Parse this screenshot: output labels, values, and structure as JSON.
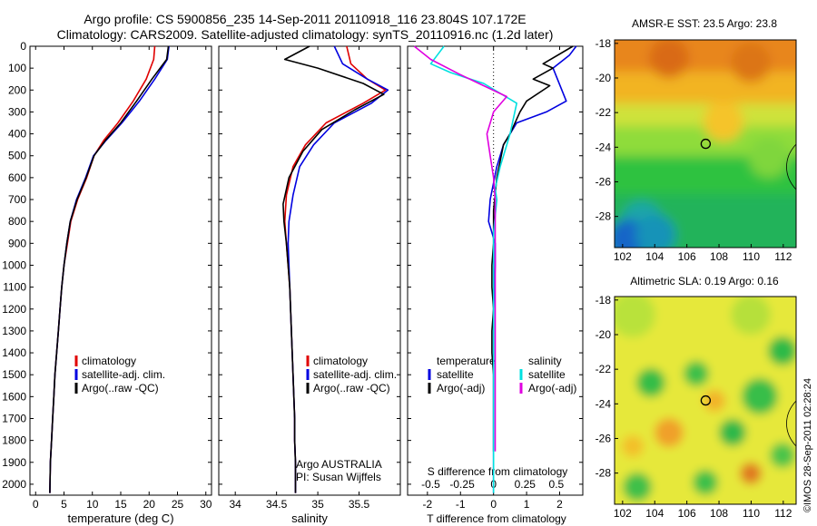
{
  "header": {
    "line1": "Argo profile: CS 5900856_235 14-Sep-2011 20110918_116 23.804S 107.172E",
    "line2": "Climatology: CARS2009. Satellite-adjusted climatology: synTS_20110916.nc (1.2d later)"
  },
  "colors": {
    "climatology": "#e00000",
    "satellite": "#0000e0",
    "argo": "#000000",
    "sat_salinity": "#00e0e0",
    "argo_salinity": "#e000e0"
  },
  "credit": "©IMOS 28-Sep-2011 02:28:24",
  "chart_data": [
    {
      "id": "temperature",
      "type": "line",
      "xlabel": "temperature (deg C)",
      "ylabel": "",
      "xlim": [
        -1,
        31
      ],
      "ylim": [
        0,
        2050
      ],
      "xticks": [
        0,
        5,
        10,
        15,
        20,
        25,
        30
      ],
      "yticks": [
        0,
        100,
        200,
        300,
        400,
        500,
        600,
        700,
        800,
        900,
        1000,
        1100,
        1200,
        1300,
        1400,
        1500,
        1600,
        1700,
        1800,
        1900,
        2000
      ],
      "y_reversed": true,
      "legend": [
        "climatology",
        "satellite-adj. clim.",
        "Argo(..raw -QC)"
      ],
      "series": [
        {
          "name": "climatology",
          "color": "#e00000",
          "x": [
            21.0,
            20.8,
            19.5,
            17.2,
            14.5,
            12.0,
            10.3,
            9.0,
            7.4,
            6.2,
            5.6,
            5.0,
            4.6,
            4.3,
            4.0,
            3.7,
            3.4,
            3.2,
            3.0,
            2.8,
            2.6,
            2.5
          ],
          "y": [
            0,
            60,
            150,
            250,
            350,
            430,
            500,
            600,
            700,
            800,
            900,
            1000,
            1100,
            1200,
            1300,
            1400,
            1500,
            1600,
            1700,
            1800,
            1900,
            2040
          ]
        },
        {
          "name": "satellite-adj. clim.",
          "color": "#0000e0",
          "x": [
            23.5,
            23.2,
            21.0,
            18.3,
            15.2,
            12.4,
            10.2,
            8.8,
            7.2,
            6.1,
            5.5,
            5.0,
            4.6,
            4.3,
            4.0,
            3.7,
            3.4,
            3.2,
            3.0,
            2.8,
            2.6,
            2.5
          ],
          "y": [
            0,
            60,
            150,
            250,
            350,
            430,
            500,
            600,
            700,
            800,
            900,
            1000,
            1100,
            1200,
            1300,
            1400,
            1500,
            1600,
            1700,
            1800,
            1900,
            2040
          ]
        },
        {
          "name": "Argo(..raw -QC)",
          "color": "#000000",
          "x": [
            23.4,
            23.1,
            20.5,
            17.8,
            15.0,
            12.3,
            10.3,
            8.9,
            7.3,
            6.1,
            5.5,
            5.0,
            4.6,
            4.3,
            4.0,
            3.7,
            3.4,
            3.2,
            3.0,
            2.8,
            2.6,
            2.5
          ],
          "y": [
            0,
            60,
            150,
            250,
            350,
            430,
            500,
            600,
            700,
            800,
            900,
            1000,
            1100,
            1200,
            1300,
            1400,
            1500,
            1600,
            1700,
            1800,
            1900,
            2040
          ]
        }
      ]
    },
    {
      "id": "salinity",
      "type": "line",
      "xlabel": "salinity",
      "ylabel": "",
      "xlim": [
        33.8,
        36.0
      ],
      "ylim": [
        0,
        2050
      ],
      "xticks": [
        34,
        34.5,
        35,
        35.5
      ],
      "y_reversed": true,
      "legend": [
        "climatology",
        "satellite-adj. clim.",
        "Argo(..raw -QC)"
      ],
      "annotation": [
        "Argo AUSTRALIA",
        "PI: Susan Wijffels"
      ],
      "series": [
        {
          "name": "climatology",
          "color": "#e00000",
          "x": [
            35.35,
            35.4,
            35.6,
            35.82,
            35.55,
            35.1,
            34.85,
            34.7,
            34.62,
            34.6,
            34.62,
            34.64,
            34.66,
            34.67,
            34.68,
            34.69,
            34.7,
            34.71,
            34.72,
            34.72,
            34.73,
            34.73
          ],
          "y": [
            0,
            80,
            150,
            200,
            260,
            350,
            450,
            550,
            680,
            800,
            900,
            1000,
            1100,
            1200,
            1300,
            1400,
            1500,
            1600,
            1700,
            1800,
            1900,
            2040
          ]
        },
        {
          "name": "satellite-adj. clim.",
          "color": "#0000e0",
          "x": [
            35.2,
            35.3,
            35.6,
            35.85,
            35.65,
            35.2,
            34.95,
            34.78,
            34.7,
            34.65,
            34.64,
            34.65,
            34.66,
            34.67,
            34.68,
            34.69,
            34.7,
            34.71,
            34.72,
            34.72,
            34.73,
            34.73
          ],
          "y": [
            0,
            80,
            150,
            200,
            260,
            350,
            450,
            550,
            680,
            800,
            900,
            1000,
            1100,
            1200,
            1300,
            1400,
            1500,
            1600,
            1700,
            1800,
            1900,
            2040
          ]
        },
        {
          "name": "Argo(..raw -QC)",
          "color": "#000000",
          "x": [
            34.9,
            34.6,
            35.0,
            35.55,
            35.8,
            35.45,
            35.05,
            34.82,
            34.65,
            34.58,
            34.59,
            34.62,
            34.64,
            34.66,
            34.67,
            34.68,
            34.69,
            34.7,
            34.71,
            34.72,
            34.72,
            34.73,
            34.73
          ],
          "y": [
            0,
            60,
            100,
            170,
            220,
            290,
            380,
            480,
            600,
            720,
            800,
            900,
            1000,
            1100,
            1200,
            1300,
            1400,
            1500,
            1600,
            1700,
            1800,
            1900,
            2040
          ]
        }
      ]
    },
    {
      "id": "differences",
      "type": "line",
      "xlabel": "T difference from climatology",
      "xlabel_top": "S difference from climatology",
      "xlim": [
        -2.6,
        2.7
      ],
      "ylim": [
        0,
        2050
      ],
      "xticks": [
        -2,
        -1,
        0,
        1,
        2
      ],
      "top_ticks": [
        {
          "label": "-0.5",
          "x": -1.9
        },
        {
          "label": "-0.25",
          "x": -0.95
        },
        {
          "label": "0",
          "x": 0
        },
        {
          "label": "0.25",
          "x": 0.95
        },
        {
          "label": "0.5",
          "x": 1.9
        }
      ],
      "y_reversed": true,
      "legend": {
        "temperature": "temperature",
        "salinity": "salinity",
        "t_sat": "satellite",
        "t_argo": "Argo(-adj)",
        "s_sat": "satellite",
        "s_argo": "Argo(-adj)"
      },
      "series": [
        {
          "name": "temperature satellite",
          "color": "#0000e0",
          "x": [
            2.5,
            2.3,
            1.8,
            2.2,
            1.6,
            0.7,
            0.3,
            0.1,
            -0.1,
            -0.15,
            0.05,
            0.05,
            0.03,
            0.0,
            0.0,
            0.0,
            0.0,
            0.0,
            0.0,
            0.0,
            0.0
          ],
          "y": [
            0,
            40,
            100,
            250,
            300,
            350,
            450,
            550,
            700,
            800,
            900,
            1000,
            1100,
            1200,
            1300,
            1400,
            1500,
            1600,
            1700,
            1800,
            2040
          ]
        },
        {
          "name": "temperature Argo(-adj)",
          "color": "#000000",
          "x": [
            2.4,
            1.5,
            1.8,
            1.2,
            1.7,
            1.0,
            0.8,
            0.5,
            0.3,
            0.1,
            0.0,
            0.0,
            -0.05,
            -0.05,
            0.0,
            -0.05,
            -0.05,
            0.0,
            0.0,
            0.0,
            0.0
          ],
          "y": [
            0,
            80,
            100,
            150,
            180,
            250,
            300,
            400,
            450,
            600,
            750,
            900,
            1000,
            1100,
            1200,
            1300,
            1400,
            1500,
            1600,
            1700,
            1850
          ]
        },
        {
          "name": "salinity satellite",
          "color": "#00e0e0",
          "x": [
            -1.5,
            -1.7,
            -1.9,
            -1.3,
            -0.3,
            0.7,
            0.5,
            0.2,
            0.05,
            0.1,
            0.0,
            0.0,
            0.0,
            0.0,
            0.0,
            0.0,
            0.0,
            0.0,
            0.0,
            0.0,
            0.0
          ],
          "y": [
            0,
            40,
            80,
            120,
            170,
            260,
            400,
            550,
            650,
            700,
            850,
            1000,
            1100,
            1200,
            1300,
            1400,
            1500,
            1600,
            1700,
            1800,
            2040
          ]
        },
        {
          "name": "salinity Argo(-adj)",
          "color": "#e000e0",
          "x": [
            -2.4,
            -1.9,
            -1.0,
            -0.3,
            0.4,
            0.0,
            -0.2,
            -0.1,
            0.0,
            0.05,
            0.05,
            0.05,
            0.05,
            0.05,
            0.05,
            0.05,
            0.05,
            0.05,
            0.05
          ],
          "y": [
            0,
            60,
            130,
            180,
            230,
            300,
            400,
            500,
            600,
            700,
            800,
            900,
            1000,
            1100,
            1200,
            1300,
            1400,
            1500,
            1850
          ]
        }
      ]
    },
    {
      "id": "sst-map",
      "type": "heatmap",
      "title": "AMSR-E SST: 23.5 Argo: 23.8",
      "xticks": [
        102,
        104,
        106,
        108,
        110,
        112
      ],
      "yticks": [
        -18,
        -20,
        -22,
        -24,
        -26,
        -28
      ],
      "xlim": [
        101.5,
        112.8
      ],
      "ylim": [
        -29.8,
        -17.8
      ],
      "marker": {
        "lon": 107.172,
        "lat": -23.804
      }
    },
    {
      "id": "sla-map",
      "type": "heatmap",
      "title": "Altimetric SLA: 0.19 Argo: 0.16",
      "xticks": [
        102,
        104,
        106,
        108,
        110,
        112
      ],
      "yticks": [
        -18,
        -20,
        -22,
        -24,
        -26,
        -28
      ],
      "xlim": [
        101.5,
        112.8
      ],
      "ylim": [
        -29.8,
        -17.8
      ],
      "marker": {
        "lon": 107.172,
        "lat": -23.804
      }
    }
  ]
}
